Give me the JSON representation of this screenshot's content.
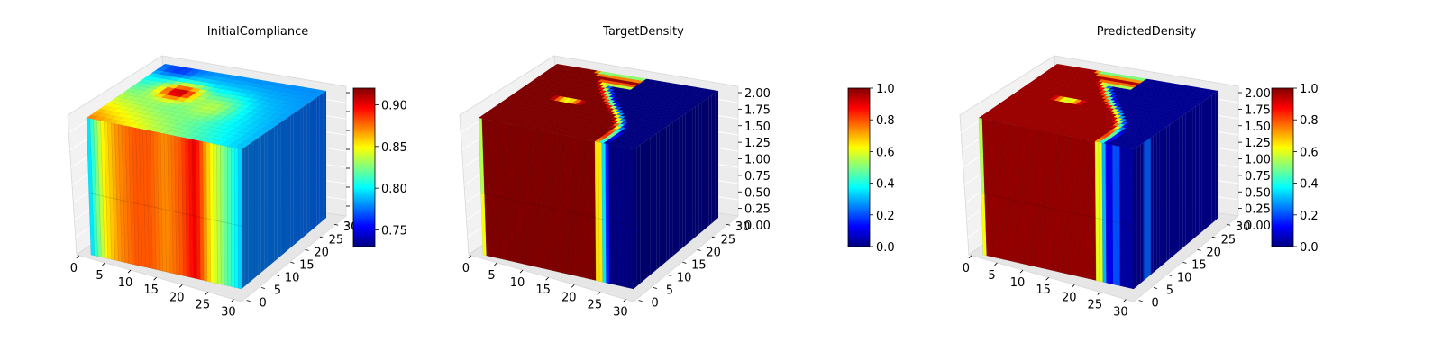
{
  "chart_data": [
    {
      "type": "heatmap",
      "title": "InitialCompliance",
      "x_ticks": [
        "0",
        "5",
        "10",
        "15",
        "20",
        "25",
        "30"
      ],
      "y_ticks": [
        "0",
        "5",
        "10",
        "15",
        "20",
        "25",
        "30"
      ],
      "z_ticks": [],
      "colorbar": {
        "min": 0.73,
        "max": 0.92,
        "ticks": [
          "0.75",
          "0.80",
          "0.85",
          "0.90"
        ],
        "colormap": "jet"
      },
      "face_values": {
        "front_gradient_left_to_right": [
          0.79,
          0.85,
          0.87,
          0.88,
          0.88,
          0.87,
          0.88,
          0.9,
          0.85,
          0.82,
          0.79
        ],
        "side_value": 0.78,
        "top_base": 0.78,
        "top_hotspots": [
          0.91,
          0.88
        ]
      }
    },
    {
      "type": "heatmap",
      "title": "TargetDensity",
      "x_ticks": [
        "0",
        "5",
        "10",
        "15",
        "20",
        "25",
        "30"
      ],
      "y_ticks": [
        "0",
        "5",
        "10",
        "15",
        "20",
        "25",
        "30"
      ],
      "z_ticks": [
        "0.00",
        "0.25",
        "0.50",
        "0.75",
        "1.00",
        "1.25",
        "1.50",
        "1.75",
        "2.00"
      ],
      "colorbar": {
        "min": 0.0,
        "max": 1.0,
        "ticks": [
          "0.0",
          "0.2",
          "0.4",
          "0.6",
          "0.8",
          "1.0"
        ],
        "colormap": "jet"
      },
      "face_values": {
        "front_bands": [
          {
            "from": 0.0,
            "to": 0.03,
            "value": 0.55
          },
          {
            "from": 0.03,
            "to": 0.76,
            "value": 1.0
          },
          {
            "from": 0.76,
            "to": 0.79,
            "value": 0.65
          },
          {
            "from": 0.79,
            "to": 0.82,
            "value": 0.35
          },
          {
            "from": 0.82,
            "to": 0.85,
            "value": 0.15
          },
          {
            "from": 0.85,
            "to": 1.0,
            "value": 0.0
          }
        ],
        "side_value": 0.0,
        "top_background": 0.0,
        "top_structure": 1.0
      }
    },
    {
      "type": "heatmap",
      "title": "PredictedDensity",
      "x_ticks": [
        "0",
        "5",
        "10",
        "15",
        "20",
        "25",
        "30"
      ],
      "y_ticks": [
        "0",
        "5",
        "10",
        "15",
        "20",
        "25",
        "30"
      ],
      "z_ticks": [
        "0.00",
        "0.25",
        "0.50",
        "0.75",
        "1.00",
        "1.25",
        "1.50",
        "1.75",
        "2.00"
      ],
      "colorbar": {
        "min": 0.0,
        "max": 1.0,
        "ticks": [
          "0.0",
          "0.2",
          "0.4",
          "0.6",
          "0.8",
          "1.0"
        ],
        "colormap": "jet"
      },
      "face_values": {
        "front_bands": [
          {
            "from": 0.0,
            "to": 0.03,
            "value": 0.55
          },
          {
            "from": 0.03,
            "to": 0.76,
            "value": 0.98
          },
          {
            "from": 0.76,
            "to": 0.79,
            "value": 0.6
          },
          {
            "from": 0.79,
            "to": 0.82,
            "value": 0.3
          },
          {
            "from": 0.82,
            "to": 0.87,
            "value": 0.1
          },
          {
            "from": 0.87,
            "to": 0.9,
            "value": 0.2
          },
          {
            "from": 0.9,
            "to": 1.0,
            "value": 0.03
          }
        ],
        "side_value": 0.02,
        "top_background": 0.02,
        "top_structure": 0.97
      }
    }
  ]
}
